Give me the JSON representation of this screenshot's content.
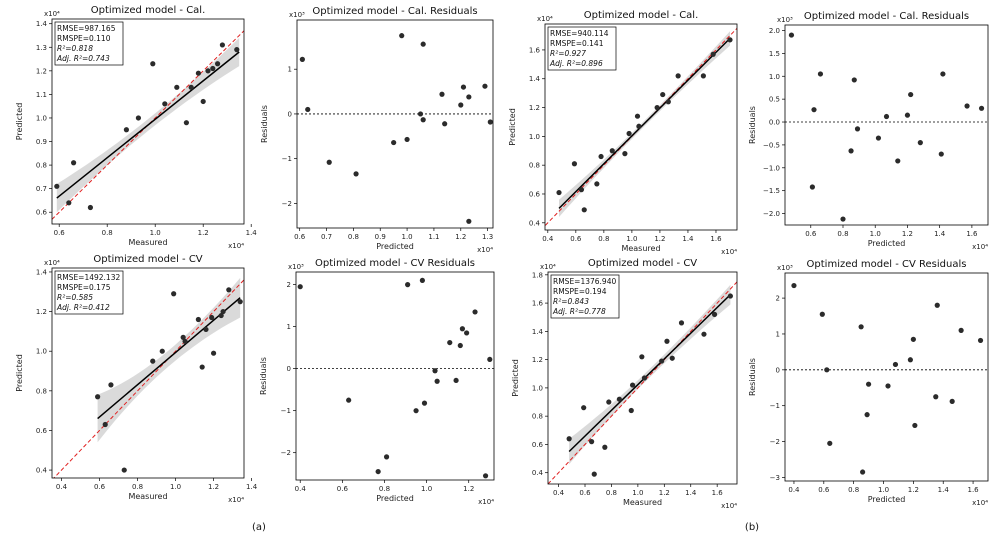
{
  "panel_labels": [
    "(a)",
    "(b)"
  ],
  "chart_data": [
    {
      "type": "scatter",
      "kind": "fit",
      "title": "Optimized model - Cal.",
      "xlabel": "Measured",
      "ylabel": "Predicted",
      "x_multiplier": "x10⁴",
      "y_multiplier": "x10⁴",
      "xlim": [
        0.57,
        1.37
      ],
      "ylim": [
        0.55,
        1.42
      ],
      "xticks": [
        0.6,
        0.8,
        1.0,
        1.2,
        1.4
      ],
      "xtick_labels": [
        "0.6",
        "0.8",
        "1.0",
        "1.2",
        "1.4"
      ],
      "yticks": [
        0.6,
        0.7,
        0.8,
        0.9,
        1.0,
        1.1,
        1.2,
        1.3,
        1.4
      ],
      "ytick_labels": [
        "0.6",
        "0.7",
        "0.8",
        "0.9",
        "1.0",
        "1.1",
        "1.2",
        "1.3",
        "1.4"
      ],
      "stats": [
        "RMSE=987.165",
        "RMSPE=0.110",
        "R²=0.818",
        "Adj. R²=0.743"
      ],
      "fit_line": [
        [
          0.59,
          0.66
        ],
        [
          1.35,
          1.28
        ]
      ],
      "band_width": [
        0.06,
        0.025,
        0.06
      ],
      "points": [
        [
          0.59,
          0.71
        ],
        [
          0.64,
          0.64
        ],
        [
          0.66,
          0.81
        ],
        [
          0.73,
          0.62
        ],
        [
          0.88,
          0.95
        ],
        [
          0.93,
          1.0
        ],
        [
          0.99,
          1.23
        ],
        [
          1.04,
          1.06
        ],
        [
          1.09,
          1.13
        ],
        [
          1.13,
          0.98
        ],
        [
          1.15,
          1.13
        ],
        [
          1.18,
          1.19
        ],
        [
          1.2,
          1.07
        ],
        [
          1.22,
          1.2
        ],
        [
          1.24,
          1.21
        ],
        [
          1.26,
          1.23
        ],
        [
          1.28,
          1.31
        ],
        [
          1.34,
          1.29
        ]
      ]
    },
    {
      "type": "scatter",
      "kind": "residual",
      "title": "Optimized model - Cal. Residuals",
      "xlabel": "Predicted",
      "ylabel": "Residuals",
      "x_multiplier": "x10⁴",
      "y_multiplier": "x10³",
      "xlim": [
        0.59,
        1.32
      ],
      "ylim": [
        -2.55,
        2.1
      ],
      "xticks": [
        0.6,
        0.7,
        0.8,
        0.9,
        1.0,
        1.1,
        1.2,
        1.3
      ],
      "xtick_labels": [
        "0.6",
        "0.7",
        "0.8",
        "0.9",
        "1.0",
        "1.1",
        "1.2",
        "1.3"
      ],
      "yticks": [
        -2,
        -1,
        0,
        1
      ],
      "ytick_labels": [
        "−2",
        "−1",
        "0",
        "1"
      ],
      "points": [
        [
          0.61,
          1.22
        ],
        [
          0.63,
          0.1
        ],
        [
          0.71,
          -1.08
        ],
        [
          0.81,
          -1.34
        ],
        [
          0.95,
          -0.64
        ],
        [
          0.98,
          1.75
        ],
        [
          1.0,
          -0.57
        ],
        [
          1.05,
          0.0
        ],
        [
          1.06,
          1.56
        ],
        [
          1.06,
          -0.13
        ],
        [
          1.13,
          0.44
        ],
        [
          1.14,
          -0.22
        ],
        [
          1.2,
          0.2
        ],
        [
          1.21,
          0.6
        ],
        [
          1.23,
          -2.4
        ],
        [
          1.23,
          0.38
        ],
        [
          1.29,
          0.62
        ],
        [
          1.31,
          -0.18
        ]
      ]
    },
    {
      "type": "scatter",
      "kind": "fit",
      "title": "Optimized model - Cal.",
      "xlabel": "Measured",
      "ylabel": "Predicted",
      "x_multiplier": "x10⁴",
      "y_multiplier": "x10⁴",
      "xlim": [
        0.38,
        1.75
      ],
      "ylim": [
        0.35,
        1.78
      ],
      "xticks": [
        0.4,
        0.6,
        0.8,
        1.0,
        1.2,
        1.4,
        1.6
      ],
      "xtick_labels": [
        "0.4",
        "0.6",
        "0.8",
        "1.0",
        "1.2",
        "1.4",
        "1.6"
      ],
      "yticks": [
        0.4,
        0.6,
        0.8,
        1.0,
        1.2,
        1.4,
        1.6
      ],
      "ytick_labels": [
        "0.4",
        "0.6",
        "0.8",
        "1.0",
        "1.2",
        "1.4",
        "1.6"
      ],
      "stats": [
        "RMSE=940.114",
        "RMSPE=0.141",
        "R²=0.927",
        "Adj. R²=0.896"
      ],
      "fit_line": [
        [
          0.48,
          0.5
        ],
        [
          1.7,
          1.68
        ]
      ],
      "band_width": [
        0.06,
        0.02,
        0.05
      ],
      "points": [
        [
          0.48,
          0.61
        ],
        [
          0.59,
          0.81
        ],
        [
          0.64,
          0.63
        ],
        [
          0.66,
          0.49
        ],
        [
          0.75,
          0.67
        ],
        [
          0.78,
          0.86
        ],
        [
          0.86,
          0.9
        ],
        [
          0.95,
          0.88
        ],
        [
          0.98,
          1.02
        ],
        [
          1.04,
          1.14
        ],
        [
          1.05,
          1.07
        ],
        [
          1.18,
          1.2
        ],
        [
          1.22,
          1.29
        ],
        [
          1.26,
          1.24
        ],
        [
          1.33,
          1.42
        ],
        [
          1.51,
          1.42
        ],
        [
          1.58,
          1.57
        ],
        [
          1.7,
          1.67
        ]
      ]
    },
    {
      "type": "scatter",
      "kind": "residual",
      "title": "Optimized model - Cal. Residuals",
      "xlabel": "Predicted",
      "ylabel": "Residuals",
      "x_multiplier": "x10⁴",
      "y_multiplier": "x10³",
      "xlim": [
        0.44,
        1.7
      ],
      "ylim": [
        -2.25,
        2.12
      ],
      "xticks": [
        0.6,
        0.8,
        1.0,
        1.2,
        1.4,
        1.6
      ],
      "xtick_labels": [
        "0.6",
        "0.8",
        "1.0",
        "1.2",
        "1.4",
        "1.6"
      ],
      "yticks": [
        -2.0,
        -1.5,
        -1.0,
        -0.5,
        0.0,
        0.5,
        1.0,
        1.5,
        2.0
      ],
      "ytick_labels": [
        "−2.0",
        "−1.5",
        "−1.0",
        "−0.5",
        "0.0",
        "0.5",
        "1.0",
        "1.5",
        "2.0"
      ],
      "points": [
        [
          0.48,
          1.9
        ],
        [
          0.61,
          -1.42
        ],
        [
          0.62,
          0.27
        ],
        [
          0.66,
          1.05
        ],
        [
          0.8,
          -2.12
        ],
        [
          0.85,
          -0.63
        ],
        [
          0.87,
          0.92
        ],
        [
          0.89,
          -0.15
        ],
        [
          1.02,
          -0.35
        ],
        [
          1.07,
          0.12
        ],
        [
          1.14,
          -0.85
        ],
        [
          1.2,
          0.15
        ],
        [
          1.22,
          0.6
        ],
        [
          1.28,
          -0.45
        ],
        [
          1.41,
          -0.7
        ],
        [
          1.42,
          1.05
        ],
        [
          1.57,
          0.35
        ],
        [
          1.66,
          0.3
        ]
      ]
    },
    {
      "type": "scatter",
      "kind": "fit",
      "title": "Optimized model - CV",
      "xlabel": "Measured",
      "ylabel": "Predicted",
      "x_multiplier": "x10⁴",
      "y_multiplier": "x10⁴",
      "xlim": [
        0.35,
        1.36
      ],
      "ylim": [
        0.36,
        1.42
      ],
      "xticks": [
        0.4,
        0.6,
        0.8,
        1.0,
        1.2,
        1.4
      ],
      "xtick_labels": [
        "0.4",
        "0.6",
        "0.8",
        "1.0",
        "1.2",
        "1.4"
      ],
      "yticks": [
        0.4,
        0.6,
        0.8,
        1.0,
        1.2,
        1.4
      ],
      "ytick_labels": [
        "0.4",
        "0.6",
        "0.8",
        "1.0",
        "1.2",
        "1.4"
      ],
      "stats": [
        "RMSE=1492.132",
        "RMSPE=0.175",
        "R²=0.585",
        "Adj. R²=0.412"
      ],
      "fit_line": [
        [
          0.59,
          0.66
        ],
        [
          1.34,
          1.27
        ]
      ],
      "band_width": [
        0.12,
        0.04,
        0.1
      ],
      "points": [
        [
          0.59,
          0.77
        ],
        [
          0.63,
          0.63
        ],
        [
          0.66,
          0.83
        ],
        [
          0.73,
          0.4
        ],
        [
          0.88,
          0.95
        ],
        [
          0.93,
          1.0
        ],
        [
          0.99,
          1.29
        ],
        [
          1.04,
          1.07
        ],
        [
          1.05,
          1.05
        ],
        [
          1.12,
          1.16
        ],
        [
          1.14,
          0.92
        ],
        [
          1.16,
          1.11
        ],
        [
          1.19,
          1.17
        ],
        [
          1.2,
          0.99
        ],
        [
          1.24,
          1.18
        ],
        [
          1.25,
          1.2
        ],
        [
          1.28,
          1.31
        ],
        [
          1.34,
          1.25
        ]
      ]
    },
    {
      "type": "scatter",
      "kind": "residual",
      "title": "Optimized model - CV Residuals",
      "xlabel": "Predicted",
      "ylabel": "Residuals",
      "x_multiplier": "x10⁴",
      "y_multiplier": "x10³",
      "xlim": [
        0.38,
        1.32
      ],
      "ylim": [
        -2.65,
        2.3
      ],
      "xticks": [
        0.4,
        0.6,
        0.8,
        1.0,
        1.2
      ],
      "xtick_labels": [
        "0.4",
        "0.6",
        "0.8",
        "1.0",
        "1.2"
      ],
      "yticks": [
        -2,
        -1,
        0,
        1,
        2
      ],
      "ytick_labels": [
        "−2",
        "−1",
        "0",
        "1",
        "2"
      ],
      "points": [
        [
          0.4,
          1.95
        ],
        [
          0.63,
          -0.75
        ],
        [
          0.77,
          -2.45
        ],
        [
          0.81,
          -2.1
        ],
        [
          0.91,
          2.0
        ],
        [
          0.95,
          -1.0
        ],
        [
          0.98,
          2.1
        ],
        [
          0.99,
          -0.82
        ],
        [
          1.04,
          -0.05
        ],
        [
          1.05,
          -0.3
        ],
        [
          1.11,
          0.62
        ],
        [
          1.14,
          -0.28
        ],
        [
          1.16,
          0.55
        ],
        [
          1.17,
          0.95
        ],
        [
          1.19,
          0.85
        ],
        [
          1.23,
          1.35
        ],
        [
          1.28,
          -2.55
        ],
        [
          1.3,
          0.22
        ]
      ]
    },
    {
      "type": "scatter",
      "kind": "fit",
      "title": "Optimized model - CV",
      "xlabel": "Measured",
      "ylabel": "Predicted",
      "x_multiplier": "x10⁴",
      "y_multiplier": "x10⁴",
      "xlim": [
        0.32,
        1.75
      ],
      "ylim": [
        0.32,
        1.82
      ],
      "xticks": [
        0.4,
        0.6,
        0.8,
        1.0,
        1.2,
        1.4,
        1.6
      ],
      "xtick_labels": [
        "0.4",
        "0.6",
        "0.8",
        "1.0",
        "1.2",
        "1.4",
        "1.6"
      ],
      "yticks": [
        0.4,
        0.6,
        0.8,
        1.0,
        1.2,
        1.4,
        1.6,
        1.8
      ],
      "ytick_labels": [
        "0.4",
        "0.6",
        "0.8",
        "1.0",
        "1.2",
        "1.4",
        "1.6",
        "1.8"
      ],
      "stats": [
        "RMSE=1376.940",
        "RMSPE=0.194",
        "R²=0.843",
        "Adj. R²=0.778"
      ],
      "fit_line": [
        [
          0.48,
          0.55
        ],
        [
          1.7,
          1.66
        ]
      ],
      "band_width": [
        0.09,
        0.03,
        0.07
      ],
      "points": [
        [
          0.48,
          0.64
        ],
        [
          0.59,
          0.86
        ],
        [
          0.65,
          0.62
        ],
        [
          0.67,
          0.39
        ],
        [
          0.75,
          0.58
        ],
        [
          0.78,
          0.9
        ],
        [
          0.86,
          0.92
        ],
        [
          0.95,
          0.84
        ],
        [
          0.96,
          1.02
        ],
        [
          1.03,
          1.22
        ],
        [
          1.05,
          1.07
        ],
        [
          1.18,
          1.19
        ],
        [
          1.22,
          1.33
        ],
        [
          1.26,
          1.21
        ],
        [
          1.33,
          1.46
        ],
        [
          1.5,
          1.38
        ],
        [
          1.58,
          1.52
        ],
        [
          1.7,
          1.65
        ]
      ]
    },
    {
      "type": "scatter",
      "kind": "residual",
      "title": "Optimized model - CV Residuals",
      "xlabel": "Predicted",
      "ylabel": "Residuals",
      "x_multiplier": "x10⁴",
      "y_multiplier": "x10³",
      "xlim": [
        0.34,
        1.7
      ],
      "ylim": [
        -3.1,
        2.7
      ],
      "xticks": [
        0.4,
        0.6,
        0.8,
        1.0,
        1.2,
        1.4,
        1.6
      ],
      "xtick_labels": [
        "0.4",
        "0.6",
        "0.8",
        "1.0",
        "1.2",
        "1.4",
        "1.6"
      ],
      "yticks": [
        -3,
        -2,
        -1,
        0,
        1,
        2
      ],
      "ytick_labels": [
        "−3",
        "−2",
        "−1",
        "0",
        "1",
        "2"
      ],
      "points": [
        [
          0.4,
          2.35
        ],
        [
          0.59,
          1.55
        ],
        [
          0.62,
          0.0
        ],
        [
          0.64,
          -2.05
        ],
        [
          0.85,
          1.2
        ],
        [
          0.86,
          -2.85
        ],
        [
          0.89,
          -1.25
        ],
        [
          0.9,
          -0.4
        ],
        [
          1.03,
          -0.45
        ],
        [
          1.08,
          0.15
        ],
        [
          1.18,
          0.28
        ],
        [
          1.2,
          0.85
        ],
        [
          1.21,
          -1.55
        ],
        [
          1.35,
          -0.75
        ],
        [
          1.36,
          1.8
        ],
        [
          1.46,
          -0.88
        ],
        [
          1.52,
          1.1
        ],
        [
          1.65,
          0.82
        ]
      ]
    }
  ]
}
